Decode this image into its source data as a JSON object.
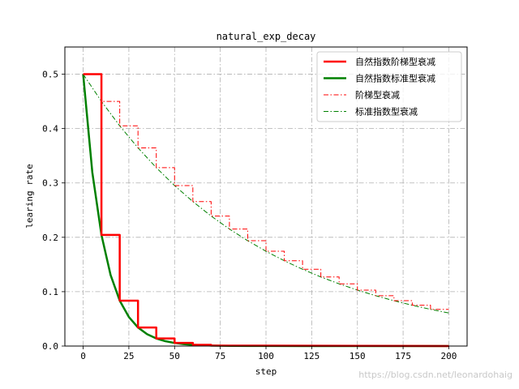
{
  "chart_data": {
    "type": "line",
    "title": "natural_exp_decay",
    "xlabel": "step",
    "ylabel": "learing rate",
    "xlim": [
      -10,
      210
    ],
    "ylim": [
      0,
      0.55
    ],
    "xticks": [
      0,
      25,
      50,
      75,
      100,
      125,
      150,
      175,
      200
    ],
    "yticks": [
      0.0,
      0.1,
      0.2,
      0.3,
      0.4,
      0.5
    ],
    "xtick_labels": [
      "0",
      "25",
      "50",
      "75",
      "100",
      "125",
      "150",
      "175",
      "200"
    ],
    "ytick_labels": [
      "0.0",
      "0.1",
      "0.2",
      "0.3",
      "0.4",
      "0.5"
    ],
    "grid": true,
    "grid_style": "dashdot",
    "legend_position": "top-right",
    "series": [
      {
        "name": "自然指数阶梯型衰减",
        "color": "#ff0000",
        "style": "solid",
        "width": "thick",
        "x": [
          0,
          10,
          10,
          20,
          20,
          30,
          30,
          40,
          40,
          50,
          50,
          60,
          60,
          70,
          70,
          200
        ],
        "y": [
          0.5,
          0.5,
          0.2044,
          0.2044,
          0.0835,
          0.0835,
          0.0341,
          0.0341,
          0.0139,
          0.0139,
          0.0057,
          0.0057,
          0.0023,
          0.0023,
          0.0009,
          0.0
        ]
      },
      {
        "name": "自然指数标准型衰减",
        "color": "#008000",
        "style": "solid",
        "width": "thick",
        "x": [
          0,
          5,
          10,
          15,
          20,
          25,
          30,
          35,
          40,
          45,
          50,
          55,
          60,
          65,
          70,
          80,
          90,
          100,
          120,
          140,
          160,
          180,
          200
        ],
        "y": [
          0.5,
          0.3197,
          0.2044,
          0.1307,
          0.0835,
          0.0534,
          0.0341,
          0.0218,
          0.0139,
          0.0089,
          0.0057,
          0.0036,
          0.0023,
          0.0015,
          0.0009,
          0.0004,
          0.0002,
          0.0001,
          0.0,
          0.0,
          0.0,
          0.0,
          0.0
        ]
      },
      {
        "name": "阶梯型衰减",
        "color": "#ff0000",
        "style": "dashdot",
        "width": "thin",
        "x": [
          0,
          10,
          10,
          20,
          20,
          30,
          30,
          40,
          40,
          50,
          50,
          60,
          60,
          70,
          70,
          80,
          80,
          90,
          90,
          100,
          100,
          110,
          110,
          120,
          120,
          130,
          130,
          140,
          140,
          150,
          150,
          160,
          160,
          170,
          170,
          180,
          180,
          190,
          190,
          200
        ],
        "y": [
          0.5,
          0.5,
          0.45,
          0.45,
          0.405,
          0.405,
          0.3645,
          0.3645,
          0.3281,
          0.3281,
          0.2952,
          0.2952,
          0.2657,
          0.2657,
          0.2391,
          0.2391,
          0.2152,
          0.2152,
          0.1937,
          0.1937,
          0.1743,
          0.1743,
          0.1569,
          0.1569,
          0.1412,
          0.1412,
          0.1271,
          0.1271,
          0.1144,
          0.1144,
          0.1029,
          0.1029,
          0.0926,
          0.0926,
          0.0834,
          0.0834,
          0.075,
          0.075,
          0.0675,
          0.0675
        ]
      },
      {
        "name": "标准指数型衰减",
        "color": "#008000",
        "style": "dashdot",
        "width": "thin",
        "x": [
          0,
          10,
          20,
          30,
          40,
          50,
          60,
          70,
          80,
          90,
          100,
          110,
          120,
          130,
          140,
          150,
          160,
          170,
          180,
          190,
          200
        ],
        "y": [
          0.5,
          0.45,
          0.405,
          0.3645,
          0.3281,
          0.2952,
          0.2657,
          0.2391,
          0.2152,
          0.1937,
          0.1743,
          0.1569,
          0.1412,
          0.1271,
          0.1144,
          0.1029,
          0.0926,
          0.0834,
          0.075,
          0.0675,
          0.0608
        ]
      }
    ]
  },
  "watermark": "https://blog.csdn.net/leonardohaig"
}
